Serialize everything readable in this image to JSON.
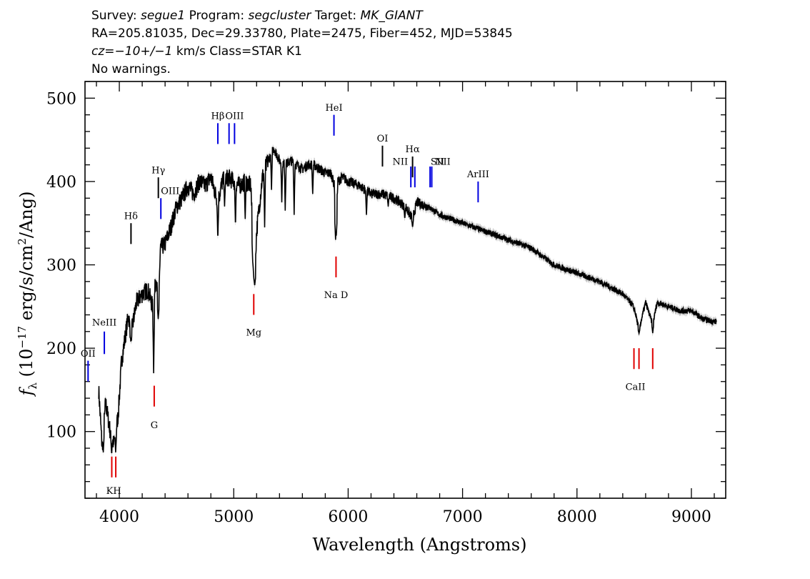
{
  "header": {
    "line1": {
      "survey_label": "Survey:",
      "survey": "segue1",
      "program_label": "Program:",
      "program": "segcluster",
      "target_label": "Target:",
      "target": "MK_GIANT"
    },
    "line2": "RA=205.81035, Dec=29.33780, Plate=2475, Fiber=452, MJD=53845",
    "line3": {
      "cz": "cz=−10+/−1",
      "rest": " km/s Class=STAR K1"
    },
    "line4": "No warnings."
  },
  "colors": {
    "emission": "#0000e0",
    "absorption": "#e00000",
    "spectrum": "#000000",
    "error": "#b0b0b0"
  },
  "chart_data": {
    "type": "line",
    "xlabel": "Wavelength (Angstroms)",
    "ylabel_parts": {
      "f": "f",
      "sub": "λ",
      "pre": " (10",
      "exp": "−17",
      "mid": " erg/s/cm",
      "exp2": "2",
      "post": "/Ang)"
    },
    "xlim": [
      3700,
      9300
    ],
    "ylim": [
      20,
      520
    ],
    "x_ticks": [
      4000,
      5000,
      6000,
      7000,
      8000,
      9000
    ],
    "y_ticks": [
      100,
      200,
      300,
      400,
      500
    ],
    "x_minor_step": 200,
    "y_minor_step": 20,
    "spectrum_anchors": [
      [
        3820,
        150
      ],
      [
        3850,
        80
      ],
      [
        3880,
        135
      ],
      [
        3920,
        100
      ],
      [
        3950,
        85
      ],
      [
        3970,
        100
      ],
      [
        3990,
        120
      ],
      [
        4020,
        185
      ],
      [
        4080,
        240
      ],
      [
        4101,
        215
      ],
      [
        4150,
        255
      ],
      [
        4200,
        265
      ],
      [
        4250,
        270
      ],
      [
        4300,
        245
      ],
      [
        4320,
        290
      ],
      [
        4340,
        250
      ],
      [
        4360,
        320
      ],
      [
        4400,
        325
      ],
      [
        4450,
        345
      ],
      [
        4500,
        370
      ],
      [
        4550,
        380
      ],
      [
        4600,
        395
      ],
      [
        4650,
        385
      ],
      [
        4700,
        400
      ],
      [
        4750,
        395
      ],
      [
        4800,
        405
      ],
      [
        4861,
        375
      ],
      [
        4900,
        400
      ],
      [
        4950,
        405
      ],
      [
        5000,
        400
      ],
      [
        5050,
        395
      ],
      [
        5100,
        400
      ],
      [
        5150,
        395
      ],
      [
        5172,
        310
      ],
      [
        5183,
        285
      ],
      [
        5200,
        340
      ],
      [
        5250,
        405
      ],
      [
        5300,
        425
      ],
      [
        5350,
        440
      ],
      [
        5400,
        425
      ],
      [
        5450,
        420
      ],
      [
        5500,
        425
      ],
      [
        5550,
        420
      ],
      [
        5600,
        415
      ],
      [
        5650,
        420
      ],
      [
        5700,
        420
      ],
      [
        5750,
        415
      ],
      [
        5800,
        410
      ],
      [
        5850,
        410
      ],
      [
        5880,
        395
      ],
      [
        5893,
        345
      ],
      [
        5910,
        400
      ],
      [
        5950,
        405
      ],
      [
        6000,
        400
      ],
      [
        6100,
        395
      ],
      [
        6200,
        385
      ],
      [
        6300,
        385
      ],
      [
        6400,
        380
      ],
      [
        6500,
        370
      ],
      [
        6563,
        355
      ],
      [
        6600,
        375
      ],
      [
        6700,
        370
      ],
      [
        6800,
        360
      ],
      [
        6900,
        355
      ],
      [
        7000,
        350
      ],
      [
        7200,
        340
      ],
      [
        7400,
        330
      ],
      [
        7600,
        320
      ],
      [
        7800,
        300
      ],
      [
        8000,
        290
      ],
      [
        8200,
        280
      ],
      [
        8400,
        265
      ],
      [
        8498,
        250
      ],
      [
        8542,
        222
      ],
      [
        8600,
        255
      ],
      [
        8662,
        228
      ],
      [
        8700,
        255
      ],
      [
        8800,
        250
      ],
      [
        8900,
        245
      ],
      [
        9000,
        245
      ],
      [
        9100,
        235
      ],
      [
        9200,
        232
      ]
    ],
    "dips": [
      [
        3860,
        75
      ],
      [
        3933,
        72
      ],
      [
        3968,
        75
      ],
      [
        4101,
        210
      ],
      [
        4300,
        170
      ],
      [
        4340,
        235
      ],
      [
        4861,
        330
      ],
      [
        4920,
        370
      ],
      [
        5015,
        345
      ],
      [
        5100,
        355
      ],
      [
        5167,
        300
      ],
      [
        5175,
        285
      ],
      [
        5183,
        275
      ],
      [
        5270,
        345
      ],
      [
        5330,
        390
      ],
      [
        5420,
        375
      ],
      [
        5450,
        365
      ],
      [
        5528,
        360
      ],
      [
        5690,
        385
      ],
      [
        5890,
        330
      ],
      [
        5896,
        335
      ],
      [
        6160,
        360
      ],
      [
        6350,
        370
      ],
      [
        6495,
        355
      ],
      [
        6563,
        345
      ],
      [
        8498,
        245
      ],
      [
        8542,
        218
      ],
      [
        8662,
        218
      ]
    ],
    "spectrum_range": [
      3820,
      9220
    ],
    "spectrum_step": 2,
    "error_halfwidth": 4,
    "emission_lines": [
      {
        "label": "OII",
        "x": 3727,
        "y0": 160,
        "y1": 185,
        "lab_y": 190
      },
      {
        "label": "NeIII",
        "x": 3869,
        "y0": 193,
        "y1": 220,
        "lab_y": 227
      },
      {
        "label": "Hδ",
        "x": 4102,
        "y0": 325,
        "y1": 350,
        "lab_y": 355,
        "color": "black"
      },
      {
        "label": "Hγ",
        "x": 4341,
        "y0": 380,
        "y1": 405,
        "lab_y": 410,
        "color": "black"
      },
      {
        "label": "OIII",
        "x": 4363,
        "y0": 355,
        "y1": 380,
        "lab_y": 385,
        "anchor": "start"
      },
      {
        "label": "Hβ",
        "x": 4861,
        "y0": 445,
        "y1": 470,
        "lab_y": 475
      },
      {
        "label": "OIII",
        "x": 4959,
        "y0": 445,
        "y1": 470
      },
      {
        "label": "OIII",
        "x": 5007,
        "y0": 445,
        "y1": 470,
        "lab_y": 475
      },
      {
        "label": "HeI",
        "x": 5876,
        "y0": 455,
        "y1": 480,
        "lab_y": 485
      },
      {
        "label": "OI",
        "x": 6300,
        "y0": 418,
        "y1": 443,
        "lab_y": 448,
        "color": "black"
      },
      {
        "label": "NII",
        "x": 6548,
        "y0": 393,
        "y1": 418,
        "lab_y": 420,
        "anchor": "end",
        "dx": -4
      },
      {
        "label": "Hα",
        "x": 6563,
        "y0": 405,
        "y1": 430,
        "lab_y": 435,
        "color": "black"
      },
      {
        "label": "NII",
        "x": 6583,
        "y0": 393,
        "y1": 418
      },
      {
        "label": "NII",
        "x": 6583,
        "lab_y": 420,
        "anchor": "end",
        "dx": 50
      },
      {
        "label": "SII",
        "x": 6716,
        "y0": 393,
        "y1": 418
      },
      {
        "label": "SII",
        "x": 6731,
        "y0": 393,
        "y1": 418,
        "lab_y": 420,
        "dx": 8
      },
      {
        "label": "ArIII",
        "x": 7136,
        "y0": 375,
        "y1": 400,
        "lab_y": 405
      }
    ],
    "absorption_lines": [
      {
        "label": "K",
        "x": 3934,
        "y0": 45,
        "y1": 70
      },
      {
        "label": "H",
        "x": 3969,
        "y0": 45,
        "y1": 70
      },
      {
        "label": "KH",
        "x": 3951,
        "lab_y": 25
      },
      {
        "label": "G",
        "x": 4305,
        "y0": 130,
        "y1": 155,
        "lab_y": 104
      },
      {
        "label": "Mg",
        "x": 5175,
        "y0": 240,
        "y1": 265,
        "lab_y": 215
      },
      {
        "label": "Na D",
        "x": 5894,
        "y0": 285,
        "y1": 310,
        "lab_y": 260
      },
      {
        "label": "CaII",
        "x": 8498,
        "y0": 175,
        "y1": 200
      },
      {
        "label": "CaII",
        "x": 8542,
        "y0": 175,
        "y1": 200,
        "lab_y": 150,
        "dx": -5
      },
      {
        "label": "CaII",
        "x": 8662,
        "y0": 175,
        "y1": 200
      }
    ]
  }
}
